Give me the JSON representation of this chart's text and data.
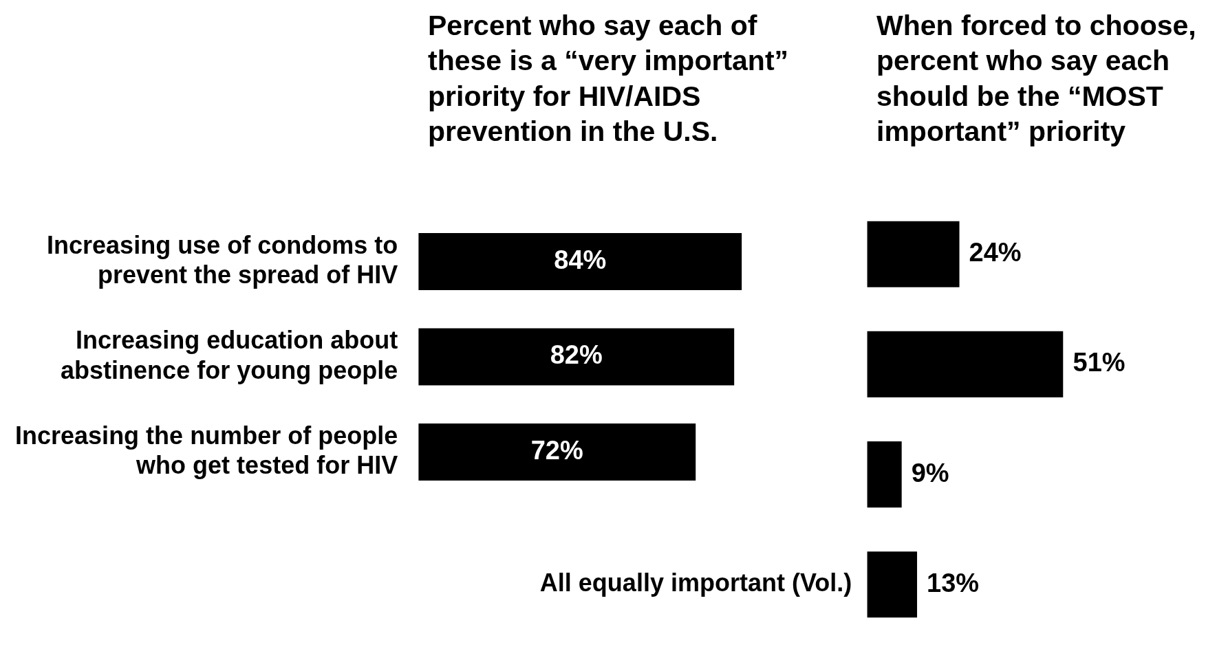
{
  "chart_data": [
    {
      "type": "bar",
      "orientation": "horizontal",
      "title": "Percent who say each of these is a “very important” priority for HIV/AIDS prevention in the U.S.",
      "categories": [
        "Increasing use of condoms to\nprevent the spread of HIV",
        "Increasing education about\nabstinence for young people",
        "Increasing the number of people\nwho get tested for HIV"
      ],
      "values": [
        84,
        82,
        72
      ],
      "value_labels": [
        "84%",
        "82%",
        "72%"
      ],
      "color": "#000000",
      "tick_labels": "y"
    },
    {
      "type": "bar",
      "orientation": "horizontal",
      "title": "When forced to choose, percent who say each should be the “MOST important” priority",
      "categories": [
        null,
        null,
        null,
        null
      ],
      "values": [
        24,
        51,
        9,
        13
      ],
      "value_labels": [
        "24%",
        "51%",
        "9%",
        "13%"
      ],
      "color": "#000000",
      "tick_labels": false,
      "annotations": [
        "All equally important (Vol.)"
      ]
    }
  ]
}
